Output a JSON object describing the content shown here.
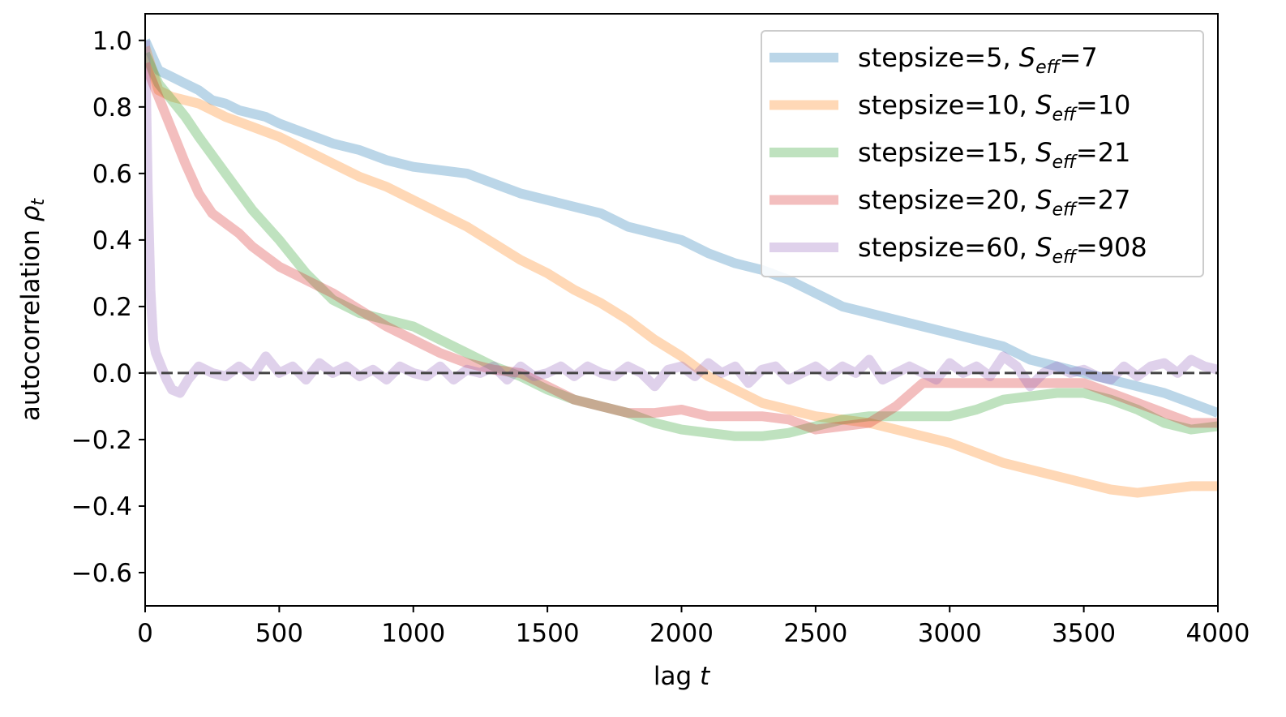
{
  "chart_data": {
    "type": "line",
    "xlabel_prefix": "lag ",
    "xlabel_var": "t",
    "ylabel_prefix": "autocorrelation ",
    "ylabel_var": "ρ",
    "ylabel_sub": "t",
    "xlim": [
      0,
      4000
    ],
    "ylim": [
      -0.7,
      1.08
    ],
    "xticks": [
      0,
      500,
      1000,
      1500,
      2000,
      2500,
      3000,
      3500,
      4000
    ],
    "yticks": [
      -0.6,
      -0.4,
      -0.2,
      0.0,
      0.2,
      0.4,
      0.6,
      0.8,
      1.0
    ],
    "ytick_labels": [
      "−0.6",
      "−0.4",
      "−0.2",
      "0.0",
      "0.2",
      "0.4",
      "0.6",
      "0.8",
      "1.0"
    ],
    "legend_position": "top-right",
    "grid": false,
    "reference_line": {
      "y": 0.0,
      "style": "dashed",
      "color": "#444444"
    },
    "series": [
      {
        "name": "stepsize=5, S_eff=7",
        "label_main": "stepsize=5, ",
        "label_var": "S",
        "label_sub": "eff",
        "label_tail": "=7",
        "color": "#1f77b4",
        "x": [
          0,
          50,
          100,
          150,
          200,
          250,
          300,
          350,
          400,
          450,
          500,
          600,
          700,
          800,
          900,
          1000,
          1100,
          1200,
          1300,
          1400,
          1500,
          1600,
          1700,
          1800,
          1900,
          2000,
          2100,
          2200,
          2300,
          2400,
          2500,
          2600,
          2700,
          2800,
          2900,
          3000,
          3100,
          3200,
          3300,
          3400,
          3500,
          3600,
          3700,
          3800,
          3900,
          4000
        ],
        "y": [
          1.0,
          0.91,
          0.89,
          0.87,
          0.85,
          0.82,
          0.81,
          0.79,
          0.78,
          0.77,
          0.75,
          0.72,
          0.69,
          0.67,
          0.64,
          0.62,
          0.61,
          0.6,
          0.57,
          0.54,
          0.52,
          0.5,
          0.48,
          0.44,
          0.42,
          0.4,
          0.36,
          0.33,
          0.31,
          0.28,
          0.24,
          0.2,
          0.18,
          0.16,
          0.14,
          0.12,
          0.1,
          0.08,
          0.04,
          0.02,
          0.0,
          -0.02,
          -0.04,
          -0.06,
          -0.09,
          -0.12
        ]
      },
      {
        "name": "stepsize=10, S_eff=10",
        "label_main": "stepsize=10, ",
        "label_var": "S",
        "label_sub": "eff",
        "label_tail": "=10",
        "color": "#ff7f0e",
        "x": [
          0,
          50,
          100,
          200,
          300,
          400,
          500,
          600,
          700,
          800,
          900,
          1000,
          1100,
          1200,
          1300,
          1400,
          1500,
          1600,
          1700,
          1800,
          1900,
          2000,
          2100,
          2200,
          2300,
          2400,
          2500,
          2600,
          2700,
          2800,
          2900,
          3000,
          3100,
          3200,
          3300,
          3400,
          3500,
          3600,
          3700,
          3800,
          3900,
          4000
        ],
        "y": [
          0.98,
          0.85,
          0.83,
          0.81,
          0.77,
          0.74,
          0.71,
          0.67,
          0.63,
          0.59,
          0.56,
          0.52,
          0.48,
          0.44,
          0.39,
          0.34,
          0.3,
          0.25,
          0.21,
          0.16,
          0.1,
          0.05,
          -0.01,
          -0.05,
          -0.09,
          -0.11,
          -0.13,
          -0.14,
          -0.15,
          -0.17,
          -0.19,
          -0.21,
          -0.24,
          -0.27,
          -0.29,
          -0.31,
          -0.33,
          -0.35,
          -0.36,
          -0.35,
          -0.34,
          -0.34
        ]
      },
      {
        "name": "stepsize=15, S_eff=21",
        "label_main": "stepsize=15, ",
        "label_var": "S",
        "label_sub": "eff",
        "label_tail": "=21",
        "color": "#2ca02c",
        "x": [
          0,
          50,
          100,
          150,
          200,
          300,
          400,
          500,
          600,
          700,
          800,
          900,
          1000,
          1100,
          1200,
          1300,
          1400,
          1500,
          1600,
          1700,
          1800,
          1900,
          2000,
          2100,
          2200,
          2300,
          2400,
          2500,
          2600,
          2700,
          2800,
          2900,
          3000,
          3100,
          3200,
          3300,
          3400,
          3500,
          3600,
          3700,
          3800,
          3900,
          4000
        ],
        "y": [
          0.96,
          0.87,
          0.82,
          0.77,
          0.71,
          0.6,
          0.49,
          0.4,
          0.3,
          0.22,
          0.18,
          0.16,
          0.14,
          0.1,
          0.06,
          0.02,
          -0.01,
          -0.05,
          -0.08,
          -0.1,
          -0.12,
          -0.15,
          -0.17,
          -0.18,
          -0.19,
          -0.19,
          -0.18,
          -0.16,
          -0.14,
          -0.13,
          -0.13,
          -0.13,
          -0.13,
          -0.11,
          -0.08,
          -0.07,
          -0.06,
          -0.06,
          -0.08,
          -0.11,
          -0.15,
          -0.17,
          -0.16
        ]
      },
      {
        "name": "stepsize=20, S_eff=27",
        "label_main": "stepsize=20, ",
        "label_var": "S",
        "label_sub": "eff",
        "label_tail": "=27",
        "color": "#d62728",
        "x": [
          0,
          50,
          100,
          150,
          200,
          250,
          300,
          350,
          400,
          500,
          600,
          700,
          800,
          900,
          1000,
          1100,
          1200,
          1300,
          1400,
          1500,
          1600,
          1700,
          1800,
          1900,
          2000,
          2100,
          2200,
          2300,
          2400,
          2500,
          2600,
          2700,
          2800,
          2900,
          3000,
          3100,
          3200,
          3300,
          3400,
          3500,
          3600,
          3700,
          3800,
          3900,
          4000
        ],
        "y": [
          0.93,
          0.83,
          0.73,
          0.63,
          0.54,
          0.48,
          0.45,
          0.42,
          0.38,
          0.32,
          0.28,
          0.24,
          0.19,
          0.14,
          0.1,
          0.06,
          0.03,
          0.01,
          0.0,
          -0.04,
          -0.08,
          -0.1,
          -0.12,
          -0.12,
          -0.11,
          -0.13,
          -0.13,
          -0.13,
          -0.14,
          -0.17,
          -0.16,
          -0.15,
          -0.1,
          -0.03,
          -0.03,
          -0.03,
          -0.03,
          -0.03,
          -0.03,
          -0.03,
          -0.06,
          -0.09,
          -0.12,
          -0.15,
          -0.15
        ]
      },
      {
        "name": "stepsize=60, S_eff=908",
        "label_main": "stepsize=60, ",
        "label_var": "S",
        "label_sub": "eff",
        "label_tail": "=908",
        "color": "#9467bd",
        "x": [
          0,
          10,
          20,
          30,
          40,
          60,
          80,
          100,
          130,
          160,
          200,
          250,
          300,
          350,
          400,
          450,
          500,
          550,
          600,
          650,
          700,
          750,
          800,
          850,
          900,
          950,
          1000,
          1050,
          1100,
          1150,
          1200,
          1250,
          1300,
          1350,
          1400,
          1450,
          1500,
          1550,
          1600,
          1650,
          1700,
          1750,
          1800,
          1850,
          1900,
          1950,
          2000,
          2050,
          2100,
          2150,
          2200,
          2250,
          2300,
          2350,
          2400,
          2450,
          2500,
          2550,
          2600,
          2650,
          2700,
          2750,
          2800,
          2850,
          2900,
          2950,
          3000,
          3050,
          3100,
          3150,
          3200,
          3250,
          3300,
          3350,
          3400,
          3450,
          3500,
          3550,
          3600,
          3650,
          3700,
          3750,
          3800,
          3850,
          3900,
          3950,
          4000
        ],
        "y": [
          1.0,
          0.55,
          0.25,
          0.1,
          0.06,
          0.02,
          -0.02,
          -0.05,
          -0.06,
          -0.02,
          0.02,
          0.0,
          -0.01,
          0.02,
          -0.01,
          0.05,
          0.0,
          0.02,
          -0.02,
          0.03,
          0.0,
          0.02,
          -0.01,
          0.01,
          -0.02,
          0.02,
          0.0,
          -0.01,
          0.02,
          -0.02,
          0.01,
          0.0,
          0.02,
          -0.02,
          0.02,
          -0.01,
          0.0,
          0.02,
          -0.01,
          0.02,
          0.0,
          -0.01,
          0.02,
          0.0,
          -0.04,
          0.01,
          0.02,
          -0.01,
          0.03,
          0.0,
          0.02,
          -0.03,
          0.01,
          0.02,
          -0.02,
          0.0,
          0.02,
          -0.01,
          0.02,
          0.0,
          0.04,
          -0.02,
          0.0,
          0.02,
          0.0,
          -0.02,
          0.03,
          0.0,
          0.02,
          -0.01,
          0.05,
          0.02,
          -0.04,
          0.0,
          0.02,
          0.0,
          0.01,
          -0.01,
          -0.02,
          0.02,
          -0.01,
          0.02,
          0.03,
          0.0,
          0.04,
          0.02,
          0.01
        ]
      }
    ]
  }
}
